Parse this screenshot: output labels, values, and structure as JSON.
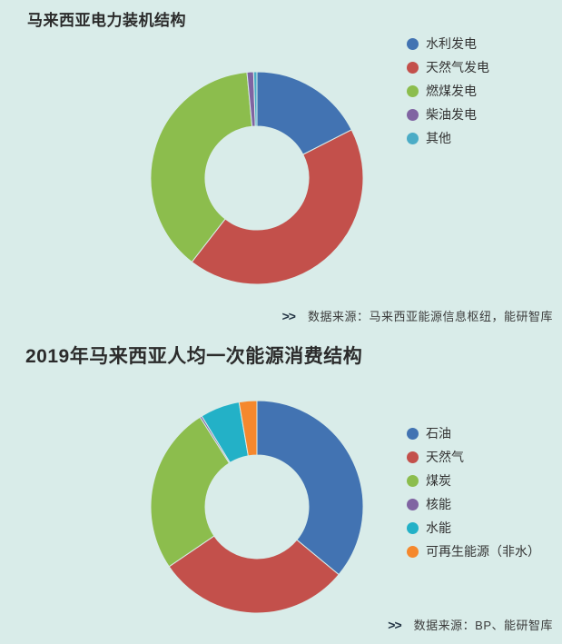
{
  "page": {
    "background": "#d9ece9"
  },
  "chart_data": [
    {
      "type": "pie",
      "subtype": "donut",
      "title": "马来西亚电力装机结构",
      "legend_position": "right",
      "labels": [
        "水利发电",
        "天然气发电",
        "燃煤发电",
        "柴油发电",
        "其他"
      ],
      "values": [
        17.5,
        43,
        38,
        1,
        0.5
      ],
      "unit": "%",
      "colors": [
        "#4273b2",
        "#c3504b",
        "#8cbd4d",
        "#8064a2",
        "#4bacc6"
      ],
      "inner_radius_ratio": 0.49,
      "start_angle": 0,
      "source_marker": ">>",
      "source": "数据来源：马来西亚能源信息枢纽，能研智库"
    },
    {
      "type": "pie",
      "subtype": "donut",
      "title": "2019年马来西亚人均一次能源消费结构",
      "legend_position": "right",
      "labels": [
        "石油",
        "天然气",
        "煤炭",
        "核能",
        "水能",
        "可再生能源（非水）"
      ],
      "values": [
        36,
        29.5,
        25.5,
        0.3,
        6,
        2.7
      ],
      "unit": "%",
      "colors": [
        "#4273b2",
        "#c3504b",
        "#8cbd4d",
        "#8064a2",
        "#23b1c7",
        "#f5882d"
      ],
      "inner_radius_ratio": 0.49,
      "start_angle": 0,
      "source_marker": ">>",
      "source": "数据来源：BP、能研智库"
    }
  ]
}
